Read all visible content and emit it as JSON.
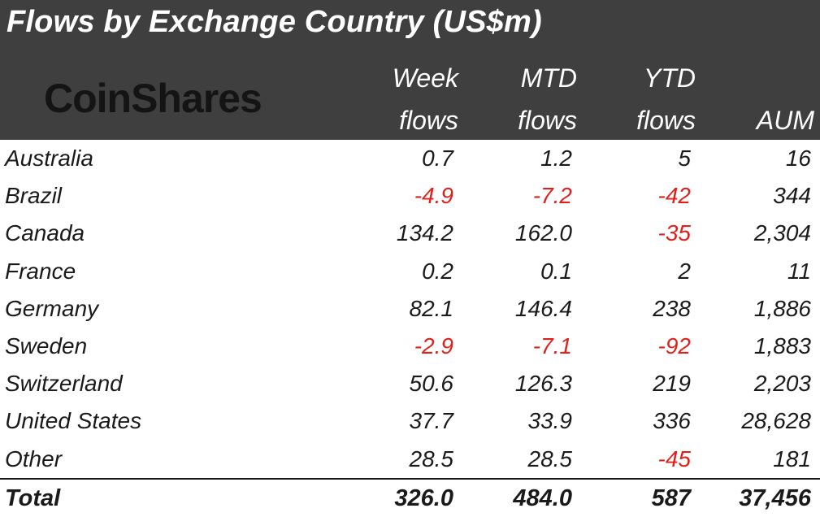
{
  "title": "Flows by Exchange Country (US$m)",
  "logo_text": "CoinShares",
  "columns": [
    {
      "key": "week",
      "line1": "Week",
      "line2": "flows"
    },
    {
      "key": "mtd",
      "line1": "MTD",
      "line2": "flows"
    },
    {
      "key": "ytd",
      "line1": "YTD",
      "line2": "flows"
    },
    {
      "key": "aum",
      "line1": "",
      "line2": "AUM"
    }
  ],
  "colors": {
    "header_bg": "#3f3f3f",
    "negative": "#e0201b",
    "text": "#1a1a1a"
  },
  "chart_data": {
    "type": "table",
    "title": "Flows by Exchange Country (US$m)",
    "columns": [
      "Week flows",
      "MTD flows",
      "YTD flows",
      "AUM"
    ],
    "rows": [
      {
        "label": "Australia",
        "cells": [
          "0.7",
          "1.2",
          "5",
          "16"
        ]
      },
      {
        "label": "Brazil",
        "cells": [
          "-4.9",
          "-7.2",
          "-42",
          "344"
        ]
      },
      {
        "label": "Canada",
        "cells": [
          "134.2",
          "162.0",
          "-35",
          "2,304"
        ]
      },
      {
        "label": "France",
        "cells": [
          "0.2",
          "0.1",
          "2",
          "11"
        ]
      },
      {
        "label": "Germany",
        "cells": [
          "82.1",
          "146.4",
          "238",
          "1,886"
        ]
      },
      {
        "label": "Sweden",
        "cells": [
          "-2.9",
          "-7.1",
          "-92",
          "1,883"
        ]
      },
      {
        "label": "Switzerland",
        "cells": [
          "50.6",
          "126.3",
          "219",
          "2,203"
        ]
      },
      {
        "label": "United States",
        "cells": [
          "37.7",
          "33.9",
          "336",
          "28,628"
        ]
      },
      {
        "label": "Other",
        "cells": [
          "28.5",
          "28.5",
          "-45",
          "181"
        ]
      }
    ],
    "total": {
      "label": "Total",
      "cells": [
        "326.0",
        "484.0",
        "587",
        "37,456"
      ]
    }
  }
}
